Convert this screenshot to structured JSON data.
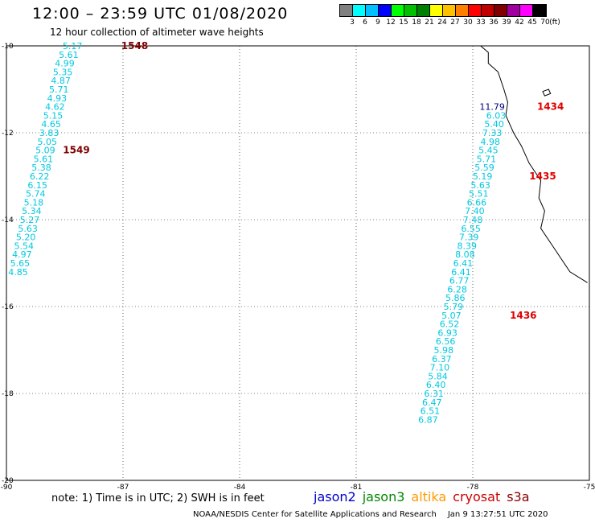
{
  "header": {
    "title": "12:00 – 23:59 UTC 01/08/2020",
    "subtitle": "12 hour collection of altimeter wave heights"
  },
  "legend": {
    "colors": [
      "#808080",
      "#00ffff",
      "#00c0ff",
      "#0000ff",
      "#00ff00",
      "#00c000",
      "#008000",
      "#ffff00",
      "#ffc000",
      "#ff8000",
      "#ff0000",
      "#c00000",
      "#800000",
      "#a000a0",
      "#ff00ff",
      "#000000"
    ],
    "labels": [
      "3",
      "6",
      "9",
      "12",
      "15",
      "18",
      "21",
      "24",
      "27",
      "30",
      "33",
      "36",
      "39",
      "42",
      "45",
      "70",
      "(ft)"
    ]
  },
  "map": {
    "lon_range": [
      -90,
      -75
    ],
    "lat_range": [
      -20,
      -10
    ],
    "lon_ticks": [
      {
        "value": -90,
        "label": "-90"
      },
      {
        "value": -87,
        "label": "-87"
      },
      {
        "value": -84,
        "label": "-84"
      },
      {
        "value": -81,
        "label": "-81"
      },
      {
        "value": -78,
        "label": "-78"
      },
      {
        "value": -75,
        "label": "-75"
      }
    ],
    "lat_ticks": [
      {
        "value": -10,
        "label": "-10"
      },
      {
        "value": -12,
        "label": "-12"
      },
      {
        "value": -14,
        "label": "-14"
      },
      {
        "value": -16,
        "label": "-16"
      },
      {
        "value": -18,
        "label": "-18"
      },
      {
        "value": -20,
        "label": "-20"
      }
    ],
    "value_color": "#00c8e0",
    "dark_value_color": "#000080",
    "track_west": {
      "points": [
        {
          "lon": -88.3,
          "lat": -10.0,
          "v": "5.17"
        },
        {
          "lon": -88.4,
          "lat": -10.2,
          "v": "5.61"
        },
        {
          "lon": -88.5,
          "lat": -10.4,
          "v": "4.99"
        },
        {
          "lon": -88.55,
          "lat": -10.6,
          "v": "5.35"
        },
        {
          "lon": -88.6,
          "lat": -10.8,
          "v": "4.87"
        },
        {
          "lon": -88.65,
          "lat": -11.0,
          "v": "5.71"
        },
        {
          "lon": -88.7,
          "lat": -11.2,
          "v": "4.93"
        },
        {
          "lon": -88.75,
          "lat": -11.4,
          "v": "4.62"
        },
        {
          "lon": -88.8,
          "lat": -11.6,
          "v": "5.15"
        },
        {
          "lon": -88.85,
          "lat": -11.8,
          "v": "4.65"
        },
        {
          "lon": -88.9,
          "lat": -12.0,
          "v": "3.83"
        },
        {
          "lon": -88.95,
          "lat": -12.2,
          "v": "5.05"
        },
        {
          "lon": -89.0,
          "lat": -12.4,
          "v": "5.09"
        },
        {
          "lon": -89.05,
          "lat": -12.6,
          "v": "5.61"
        },
        {
          "lon": -89.1,
          "lat": -12.8,
          "v": "5.38"
        },
        {
          "lon": -89.15,
          "lat": -13.0,
          "v": "6.22"
        },
        {
          "lon": -89.2,
          "lat": -13.2,
          "v": "6.15"
        },
        {
          "lon": -89.25,
          "lat": -13.4,
          "v": "5.74"
        },
        {
          "lon": -89.3,
          "lat": -13.6,
          "v": "5.18"
        },
        {
          "lon": -89.35,
          "lat": -13.8,
          "v": "5.34"
        },
        {
          "lon": -89.4,
          "lat": -14.0,
          "v": "5.27"
        },
        {
          "lon": -89.45,
          "lat": -14.2,
          "v": "5.63"
        },
        {
          "lon": -89.5,
          "lat": -14.4,
          "v": "5.20"
        },
        {
          "lon": -89.55,
          "lat": -14.6,
          "v": "5.54"
        },
        {
          "lon": -89.6,
          "lat": -14.8,
          "v": "4.97"
        },
        {
          "lon": -89.65,
          "lat": -15.0,
          "v": "5.65"
        },
        {
          "lon": -89.7,
          "lat": -15.2,
          "v": "4.85"
        }
      ]
    },
    "track_east": {
      "points": [
        {
          "lon": -77.5,
          "lat": -11.4,
          "v": "11.79",
          "dark": true
        },
        {
          "lon": -77.4,
          "lat": -11.6,
          "v": "6.03"
        },
        {
          "lon": -77.45,
          "lat": -11.8,
          "v": "5.40"
        },
        {
          "lon": -77.5,
          "lat": -12.0,
          "v": "7.33"
        },
        {
          "lon": -77.55,
          "lat": -12.2,
          "v": "4.98"
        },
        {
          "lon": -77.6,
          "lat": -12.4,
          "v": "5.45"
        },
        {
          "lon": -77.65,
          "lat": -12.6,
          "v": "5.71"
        },
        {
          "lon": -77.7,
          "lat": -12.8,
          "v": "5.59"
        },
        {
          "lon": -77.75,
          "lat": -13.0,
          "v": "5.19"
        },
        {
          "lon": -77.8,
          "lat": -13.2,
          "v": "5.63"
        },
        {
          "lon": -77.85,
          "lat": -13.4,
          "v": "5.51"
        },
        {
          "lon": -77.9,
          "lat": -13.6,
          "v": "6.66"
        },
        {
          "lon": -77.95,
          "lat": -13.8,
          "v": "7.40"
        },
        {
          "lon": -78.0,
          "lat": -14.0,
          "v": "7.48"
        },
        {
          "lon": -78.05,
          "lat": -14.2,
          "v": "6.55"
        },
        {
          "lon": -78.1,
          "lat": -14.4,
          "v": "7.39"
        },
        {
          "lon": -78.15,
          "lat": -14.6,
          "v": "8.39"
        },
        {
          "lon": -78.2,
          "lat": -14.8,
          "v": "8.08"
        },
        {
          "lon": -78.25,
          "lat": -15.0,
          "v": "6.41"
        },
        {
          "lon": -78.3,
          "lat": -15.2,
          "v": "6.41"
        },
        {
          "lon": -78.35,
          "lat": -15.4,
          "v": "6.77"
        },
        {
          "lon": -78.4,
          "lat": -15.6,
          "v": "6.28"
        },
        {
          "lon": -78.45,
          "lat": -15.8,
          "v": "5.86"
        },
        {
          "lon": -78.5,
          "lat": -16.0,
          "v": "5.79"
        },
        {
          "lon": -78.55,
          "lat": -16.2,
          "v": "5.07"
        },
        {
          "lon": -78.6,
          "lat": -16.4,
          "v": "6.52"
        },
        {
          "lon": -78.65,
          "lat": -16.6,
          "v": "6.93"
        },
        {
          "lon": -78.7,
          "lat": -16.8,
          "v": "6.56"
        },
        {
          "lon": -78.75,
          "lat": -17.0,
          "v": "5.98"
        },
        {
          "lon": -78.8,
          "lat": -17.2,
          "v": "6.37"
        },
        {
          "lon": -78.85,
          "lat": -17.4,
          "v": "7.10"
        },
        {
          "lon": -78.9,
          "lat": -17.6,
          "v": "5.84"
        },
        {
          "lon": -78.95,
          "lat": -17.8,
          "v": "6.40"
        },
        {
          "lon": -79.0,
          "lat": -18.0,
          "v": "6.31"
        },
        {
          "lon": -79.05,
          "lat": -18.2,
          "v": "6.47"
        },
        {
          "lon": -79.1,
          "lat": -18.4,
          "v": "6.51"
        },
        {
          "lon": -79.15,
          "lat": -18.6,
          "v": "6.87"
        }
      ]
    },
    "pass_labels": [
      {
        "text": "1548",
        "lon": -86.7,
        "lat": -10.0,
        "color": "#800000"
      },
      {
        "text": "1549",
        "lon": -88.2,
        "lat": -12.4,
        "color": "#800000"
      },
      {
        "text": "1434",
        "lon": -76.0,
        "lat": -11.4,
        "color": "#e00000"
      },
      {
        "text": "1435",
        "lon": -76.2,
        "lat": -13.0,
        "color": "#e00000"
      },
      {
        "text": "1436",
        "lon": -76.7,
        "lat": -16.2,
        "color": "#e00000"
      }
    ],
    "coastline": [
      {
        "lon": -77.8,
        "lat": -10.0
      },
      {
        "lon": -77.6,
        "lat": -10.15
      },
      {
        "lon": -77.6,
        "lat": -10.4
      },
      {
        "lon": -77.35,
        "lat": -10.6
      },
      {
        "lon": -77.2,
        "lat": -11.0
      },
      {
        "lon": -77.1,
        "lat": -11.3
      },
      {
        "lon": -77.15,
        "lat": -11.6
      },
      {
        "lon": -76.95,
        "lat": -12.0
      },
      {
        "lon": -76.75,
        "lat": -12.3
      },
      {
        "lon": -76.55,
        "lat": -12.7
      },
      {
        "lon": -76.25,
        "lat": -13.1
      },
      {
        "lon": -76.3,
        "lat": -13.5
      },
      {
        "lon": -76.15,
        "lat": -13.8
      },
      {
        "lon": -76.25,
        "lat": -14.2
      },
      {
        "lon": -75.95,
        "lat": -14.6
      },
      {
        "lon": -75.5,
        "lat": -15.2
      },
      {
        "lon": -75.05,
        "lat": -15.45
      }
    ],
    "island": [
      {
        "lon": -76.2,
        "lat": -11.05
      },
      {
        "lon": -76.05,
        "lat": -11.0
      },
      {
        "lon": -76.0,
        "lat": -11.1
      },
      {
        "lon": -76.15,
        "lat": -11.15
      }
    ]
  },
  "footer": {
    "note": "note: 1) Time is in UTC; 2) SWH is in feet",
    "missions": [
      {
        "name": "jason2",
        "color": "#0000cc"
      },
      {
        "name": "jason3",
        "color": "#008800"
      },
      {
        "name": "altika",
        "color": "#ff9900"
      },
      {
        "name": "cryosat",
        "color": "#cc0000"
      },
      {
        "name": "s3a",
        "color": "#880000"
      }
    ],
    "credit": "NOAA/NESDIS Center for Satellite Applications and Research",
    "timestamp": "Jan  9 13:27:51 UTC 2020"
  }
}
